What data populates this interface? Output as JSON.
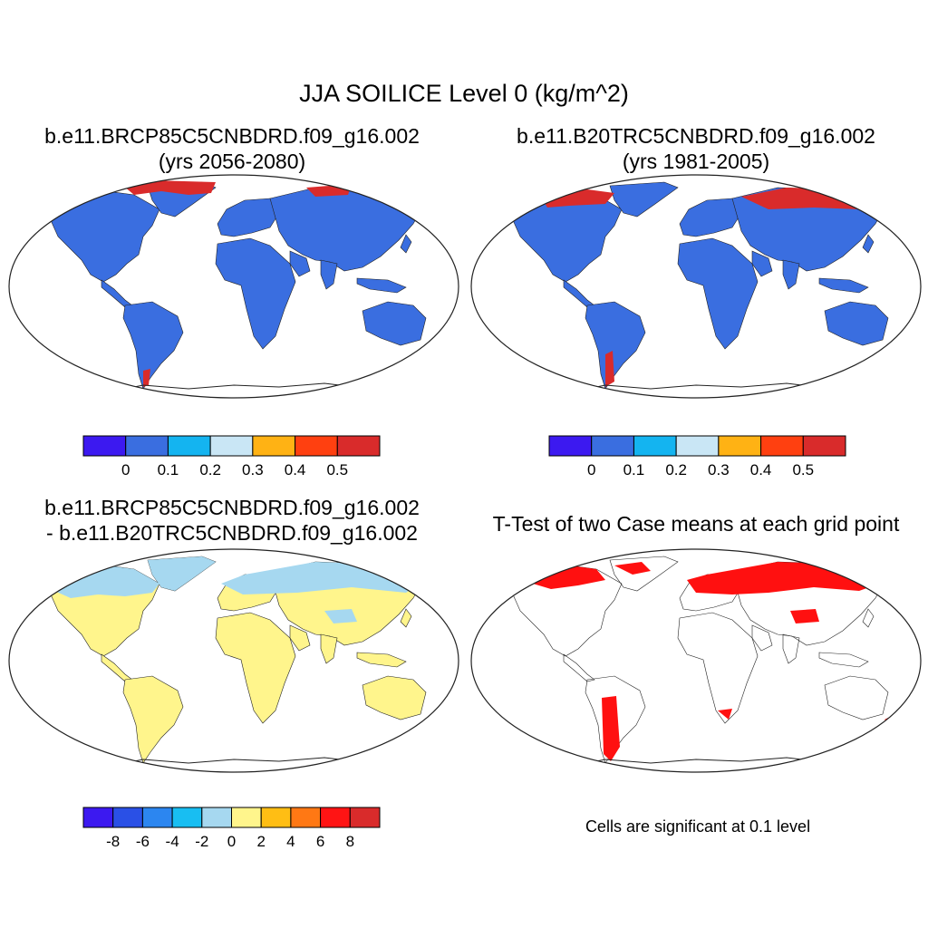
{
  "title": "JJA SOILICE Level 0 (kg/m^2)",
  "panels": {
    "top_left": {
      "line1": "b.e11.BRCP85C5CNBDRD.f09_g16.002",
      "line2": "(yrs 2056-2080)"
    },
    "top_right": {
      "line1": "b.e11.B20TRC5CNBDRD.f09_g16.002",
      "line2": "(yrs 1981-2005)"
    },
    "bottom_left": {
      "line1": "b.e11.BRCP85C5CNBDRD.f09_g16.002",
      "line2": "- b.e11.B20TRC5CNBDRD.f09_g16.002"
    },
    "bottom_right": {
      "line1": "T-Test of two Case means at each grid point",
      "note": "Cells are significant at 0.1 level"
    }
  },
  "colorbars": {
    "top": {
      "colors": [
        "#3c19f0",
        "#3a6ee0",
        "#14b4f0",
        "#c9e6f5",
        "#ffb214",
        "#ff4010",
        "#d92b2b"
      ],
      "labels": [
        "0",
        "0.1",
        "0.2",
        "0.3",
        "0.4",
        "0.5"
      ]
    },
    "bottom": {
      "colors": [
        "#3c19f0",
        "#2a50e6",
        "#2c86f0",
        "#18bef2",
        "#a6d8f0",
        "#fff58c",
        "#ffbe14",
        "#ff7814",
        "#ff1414",
        "#d92b2b"
      ],
      "labels": [
        "-8",
        "-6",
        "-4",
        "-2",
        "0",
        "2",
        "4",
        "6",
        "8"
      ]
    }
  },
  "map_colors": {
    "land_blue": "#3a6ee0",
    "high_red": "#d92b2b",
    "diff_yellow": "#fff58c",
    "diff_lightblue": "#a6d8f0",
    "signif_red": "#ff1010"
  }
}
